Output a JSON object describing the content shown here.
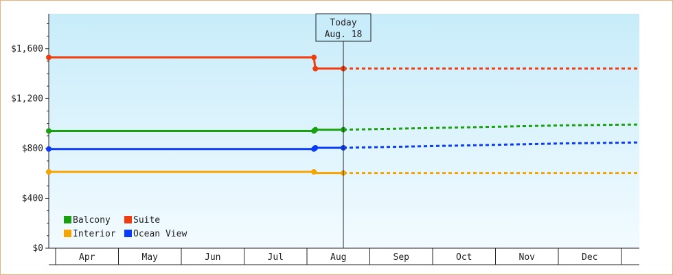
{
  "chart_data": {
    "type": "line",
    "x_categories": [
      "Apr",
      "May",
      "Jun",
      "Jul",
      "Aug",
      "Sep",
      "Oct",
      "Nov",
      "Dec"
    ],
    "y_ticks": [
      "$0",
      "$400",
      "$800",
      "$1,200",
      "$1,600"
    ],
    "y_tick_values": [
      0,
      400,
      800,
      1200,
      1600
    ],
    "ylim": [
      0,
      1880
    ],
    "today_marker": {
      "line1": "Today",
      "line2": "Aug. 18",
      "x": 4.0
    },
    "series": [
      {
        "name": "Balcony",
        "color": "#18a010",
        "actual": [
          [
            0.0,
            940
          ],
          [
            3.6,
            940
          ],
          [
            3.62,
            950
          ],
          [
            4.0,
            950
          ]
        ],
        "actual_markers": [
          [
            0.0,
            940
          ],
          [
            3.6,
            940
          ],
          [
            3.62,
            950
          ],
          [
            4.0,
            950
          ]
        ],
        "projected": [
          [
            4.0,
            950
          ],
          [
            4.5,
            955
          ],
          [
            5.5,
            965
          ],
          [
            6.5,
            975
          ],
          [
            7.5,
            985
          ],
          [
            8.7,
            992
          ]
        ]
      },
      {
        "name": "Suite",
        "color": "#f03c0e",
        "actual": [
          [
            0.0,
            1530
          ],
          [
            3.6,
            1530
          ],
          [
            3.62,
            1440
          ],
          [
            4.0,
            1440
          ]
        ],
        "actual_markers": [
          [
            0.0,
            1530
          ],
          [
            3.6,
            1530
          ],
          [
            3.62,
            1440
          ],
          [
            4.0,
            1440
          ]
        ],
        "projected": [
          [
            4.0,
            1440
          ],
          [
            8.7,
            1440
          ]
        ]
      },
      {
        "name": "Interior",
        "color": "#f5a400",
        "actual": [
          [
            0.0,
            612
          ],
          [
            3.6,
            612
          ],
          [
            3.62,
            603
          ],
          [
            4.0,
            603
          ]
        ],
        "actual_markers": [
          [
            0.0,
            612
          ],
          [
            3.6,
            612
          ],
          [
            4.0,
            603
          ]
        ],
        "projected": [
          [
            4.0,
            603
          ],
          [
            8.7,
            603
          ]
        ]
      },
      {
        "name": "Ocean View",
        "color": "#0a3cf5",
        "actual": [
          [
            0.0,
            795
          ],
          [
            3.6,
            795
          ],
          [
            3.62,
            805
          ],
          [
            4.0,
            805
          ]
        ],
        "actual_markers": [
          [
            0.0,
            795
          ],
          [
            3.6,
            795
          ],
          [
            3.62,
            805
          ],
          [
            4.0,
            805
          ]
        ],
        "projected": [
          [
            4.0,
            805
          ],
          [
            4.5,
            810
          ],
          [
            5.5,
            820
          ],
          [
            6.5,
            830
          ],
          [
            7.5,
            840
          ],
          [
            8.7,
            848
          ]
        ]
      }
    ],
    "legend": [
      [
        "Balcony",
        "Suite"
      ],
      [
        "Interior",
        "Ocean View"
      ]
    ]
  }
}
